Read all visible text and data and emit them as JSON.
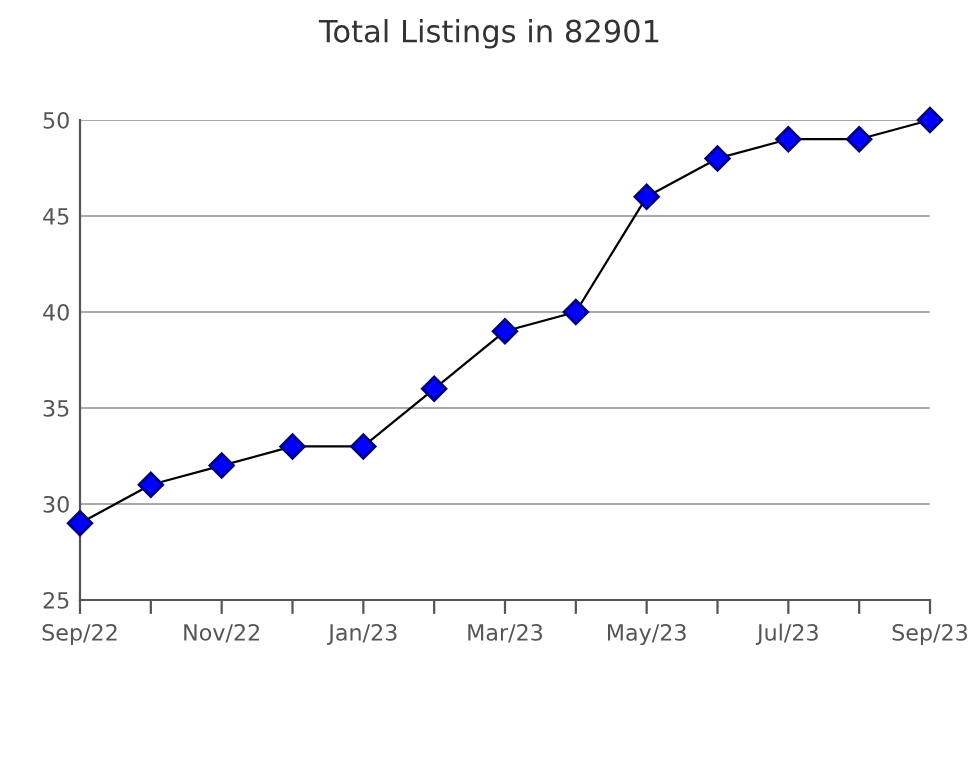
{
  "chart_data": {
    "type": "line",
    "title": "Total Listings in 82901",
    "categories": [
      "Sep/22",
      null,
      "Nov/22",
      null,
      "Jan/23",
      null,
      "Mar/23",
      null,
      "May/23",
      null,
      "Jul/23",
      null,
      "Sep/23"
    ],
    "series": [
      {
        "color": "#0000ff",
        "values": [
          29,
          31,
          32,
          33,
          33,
          36,
          39,
          40,
          46,
          48,
          49,
          49,
          50
        ]
      }
    ],
    "ylim": [
      25,
      50
    ],
    "yticks": [
      25,
      30,
      35,
      40,
      45,
      50
    ],
    "grid": "y",
    "marker": "diamond",
    "line_style": "solid"
  }
}
